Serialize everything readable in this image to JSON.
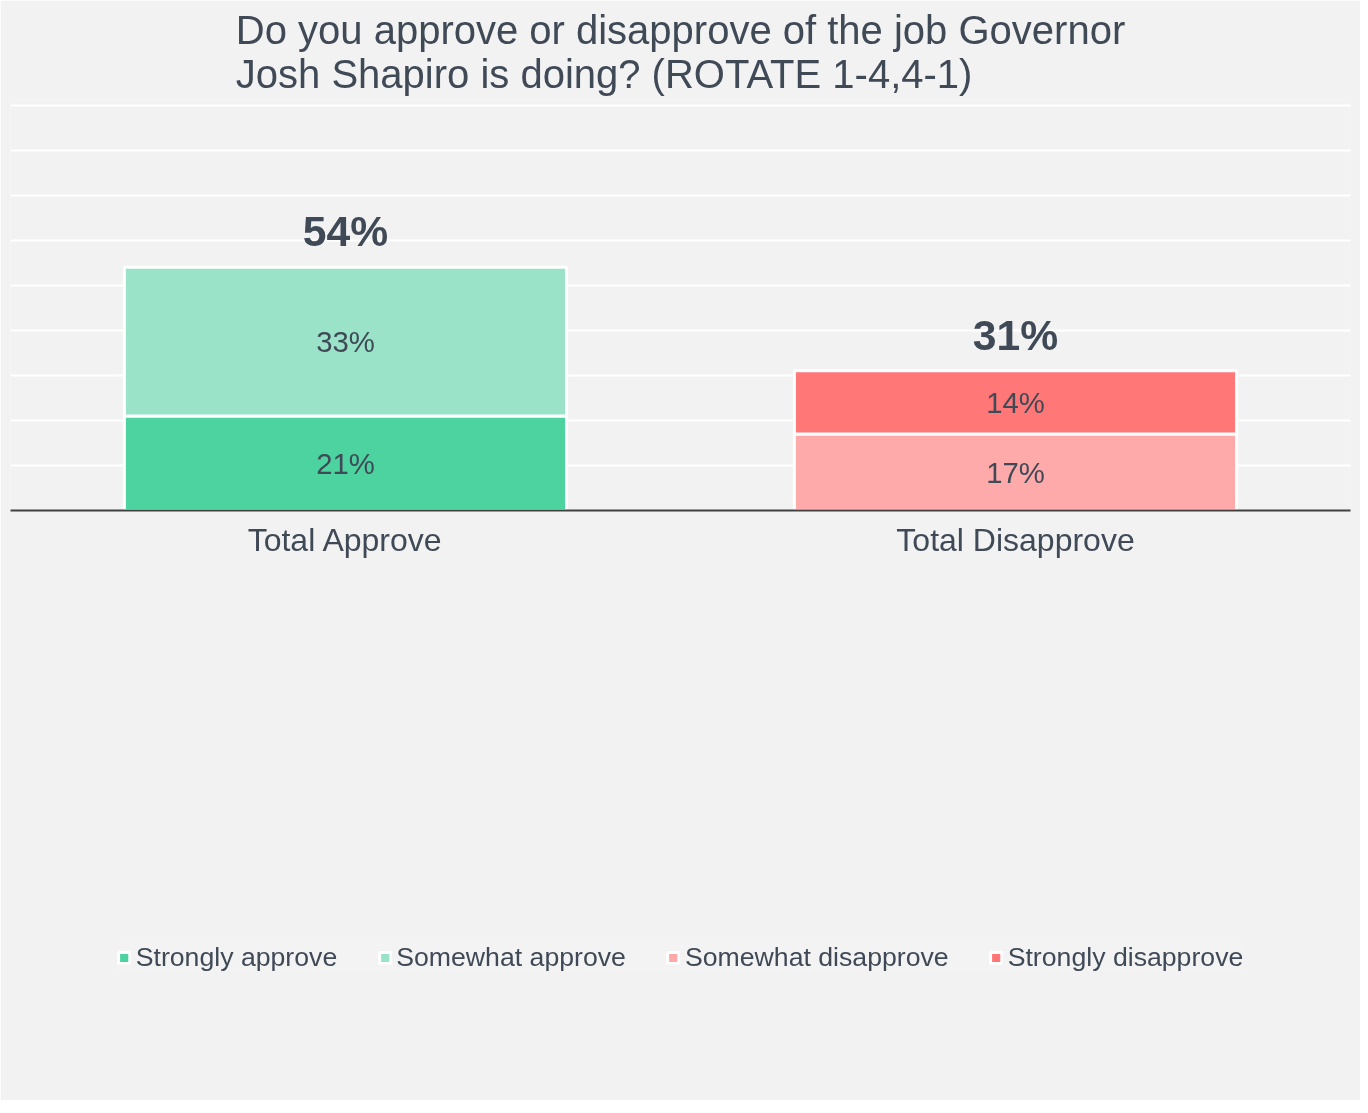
{
  "chart_data": {
    "type": "bar",
    "stacked": true,
    "title": "Do you approve or disapprove of the job Governor\nJosh Shapiro is doing? (ROTATE 1-4,4-1)",
    "categories": [
      "Total Approve",
      "Total Disapprove"
    ],
    "series": [
      {
        "name": "Strongly approve",
        "color": "#4cd3a0",
        "values": [
          21,
          null
        ],
        "value_labels": [
          "21%",
          null
        ]
      },
      {
        "name": "Somewhat approve",
        "color": "#9be3c8",
        "values": [
          33,
          null
        ],
        "value_labels": [
          "33%",
          null
        ]
      },
      {
        "name": "Somewhat disapprove",
        "color": "#ffaaaa",
        "values": [
          null,
          17
        ],
        "value_labels": [
          null,
          "17%"
        ]
      },
      {
        "name": "Strongly disapprove",
        "color": "#ff7777",
        "values": [
          null,
          14
        ],
        "value_labels": [
          null,
          "14%"
        ]
      }
    ],
    "totals": [
      "54%",
      "31%"
    ],
    "ylim": [
      0,
      91
    ],
    "yticks": [
      {
        "value": 10,
        "label": null
      },
      {
        "value": 20,
        "label": null
      },
      {
        "value": 30,
        "label": null
      },
      {
        "value": 40,
        "label": null
      },
      {
        "value": 50,
        "label": null
      },
      {
        "value": 60,
        "label": null
      },
      {
        "value": 70,
        "label": null
      },
      {
        "value": 80,
        "label": null
      },
      {
        "value": 90,
        "label": null
      }
    ],
    "grid": "y",
    "legend": "bottom",
    "tick_labels": "x"
  }
}
